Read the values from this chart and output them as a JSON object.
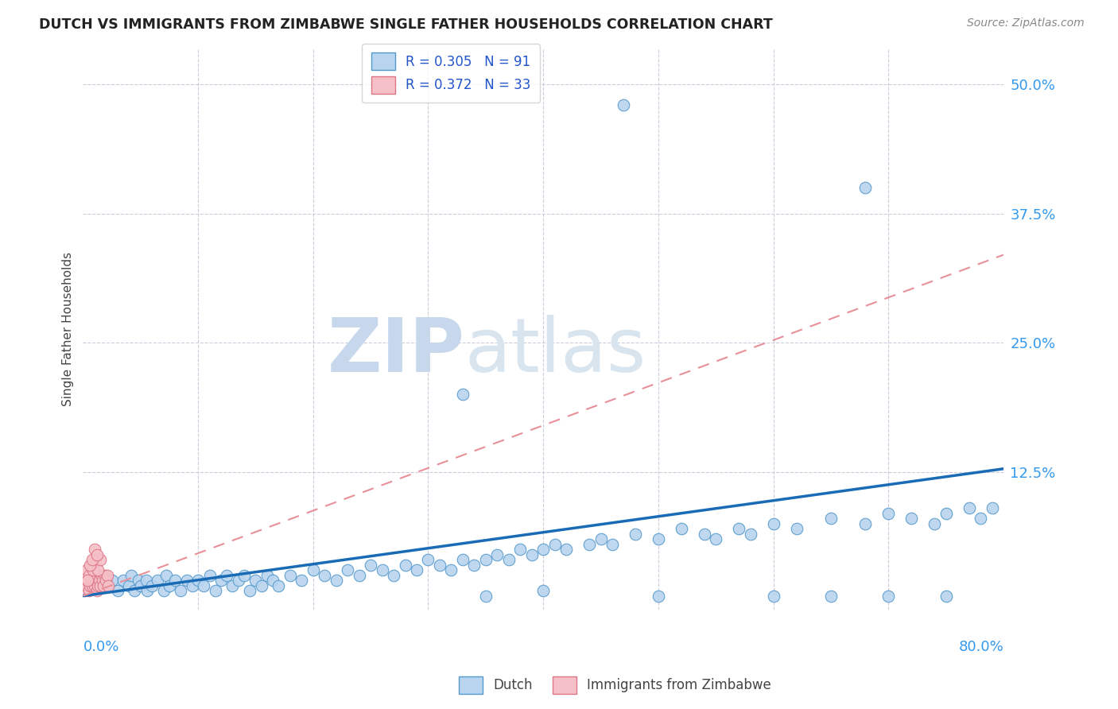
{
  "title": "DUTCH VS IMMIGRANTS FROM ZIMBABWE SINGLE FATHER HOUSEHOLDS CORRELATION CHART",
  "source": "Source: ZipAtlas.com",
  "ylabel": "Single Father Households",
  "ytick_values": [
    0.0,
    0.125,
    0.25,
    0.375,
    0.5
  ],
  "ytick_labels": [
    "",
    "12.5%",
    "25.0%",
    "37.5%",
    "50.0%"
  ],
  "xlim": [
    0.0,
    0.8
  ],
  "ylim": [
    -0.008,
    0.535
  ],
  "legend_r_dutch": "R = 0.305",
  "legend_n_dutch": "N = 91",
  "legend_r_zimb": "R = 0.372",
  "legend_n_zimb": "N = 33",
  "dutch_color": "#b8d4ee",
  "dutch_edge_color": "#5599cc",
  "zimb_color": "#f5c0c8",
  "zimb_edge_color": "#dd7788",
  "dutch_line_color": "#1a6bb5",
  "zimb_line_color": "#e8909a",
  "background_color": "#ffffff",
  "dutch_line_x": [
    0.0,
    0.8
  ],
  "dutch_line_y": [
    0.005,
    0.128
  ],
  "zimb_line_x": [
    0.0,
    0.8
  ],
  "zimb_line_y": [
    0.005,
    0.335
  ],
  "dutch_x": [
    0.02,
    0.025,
    0.03,
    0.035,
    0.04,
    0.042,
    0.045,
    0.048,
    0.05,
    0.055,
    0.056,
    0.06,
    0.065,
    0.07,
    0.072,
    0.075,
    0.08,
    0.085,
    0.09,
    0.095,
    0.1,
    0.105,
    0.11,
    0.115,
    0.12,
    0.125,
    0.13,
    0.135,
    0.14,
    0.145,
    0.15,
    0.155,
    0.16,
    0.165,
    0.17,
    0.18,
    0.19,
    0.2,
    0.21,
    0.22,
    0.23,
    0.24,
    0.25,
    0.26,
    0.27,
    0.28,
    0.29,
    0.3,
    0.31,
    0.32,
    0.33,
    0.34,
    0.35,
    0.36,
    0.37,
    0.38,
    0.39,
    0.4,
    0.41,
    0.42,
    0.44,
    0.45,
    0.46,
    0.48,
    0.5,
    0.52,
    0.54,
    0.55,
    0.57,
    0.58,
    0.6,
    0.62,
    0.65,
    0.68,
    0.7,
    0.72,
    0.74,
    0.75,
    0.77,
    0.78,
    0.79,
    0.47,
    0.68,
    0.33,
    0.4,
    0.5,
    0.6,
    0.65,
    0.7,
    0.75,
    0.35
  ],
  "dutch_y": [
    0.015,
    0.02,
    0.01,
    0.02,
    0.015,
    0.025,
    0.01,
    0.02,
    0.015,
    0.02,
    0.01,
    0.015,
    0.02,
    0.01,
    0.025,
    0.015,
    0.02,
    0.01,
    0.02,
    0.015,
    0.02,
    0.015,
    0.025,
    0.01,
    0.02,
    0.025,
    0.015,
    0.02,
    0.025,
    0.01,
    0.02,
    0.015,
    0.025,
    0.02,
    0.015,
    0.025,
    0.02,
    0.03,
    0.025,
    0.02,
    0.03,
    0.025,
    0.035,
    0.03,
    0.025,
    0.035,
    0.03,
    0.04,
    0.035,
    0.03,
    0.04,
    0.035,
    0.04,
    0.045,
    0.04,
    0.05,
    0.045,
    0.05,
    0.055,
    0.05,
    0.055,
    0.06,
    0.055,
    0.065,
    0.06,
    0.07,
    0.065,
    0.06,
    0.07,
    0.065,
    0.075,
    0.07,
    0.08,
    0.075,
    0.085,
    0.08,
    0.075,
    0.085,
    0.09,
    0.08,
    0.09,
    0.48,
    0.4,
    0.2,
    0.01,
    0.005,
    0.005,
    0.005,
    0.005,
    0.005,
    0.005
  ],
  "zimb_x": [
    0.002,
    0.003,
    0.004,
    0.005,
    0.006,
    0.007,
    0.008,
    0.009,
    0.01,
    0.011,
    0.012,
    0.013,
    0.014,
    0.015,
    0.016,
    0.017,
    0.018,
    0.019,
    0.02,
    0.021,
    0.022,
    0.003,
    0.005,
    0.007,
    0.009,
    0.011,
    0.013,
    0.015,
    0.004,
    0.006,
    0.008,
    0.01,
    0.012
  ],
  "zimb_y": [
    0.01,
    0.015,
    0.02,
    0.01,
    0.015,
    0.02,
    0.015,
    0.02,
    0.015,
    0.02,
    0.01,
    0.015,
    0.02,
    0.015,
    0.025,
    0.02,
    0.015,
    0.025,
    0.02,
    0.025,
    0.015,
    0.03,
    0.025,
    0.035,
    0.03,
    0.04,
    0.03,
    0.04,
    0.02,
    0.035,
    0.04,
    0.05,
    0.045
  ],
  "grid_xticks": [
    0.0,
    0.1,
    0.2,
    0.3,
    0.4,
    0.5,
    0.6,
    0.7,
    0.8
  ]
}
